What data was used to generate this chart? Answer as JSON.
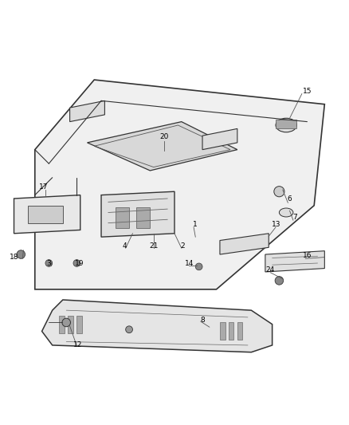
{
  "title": "",
  "bg_color": "#ffffff",
  "line_color": "#333333",
  "label_color": "#000000",
  "figsize": [
    4.38,
    5.33
  ],
  "dpi": 100
}
